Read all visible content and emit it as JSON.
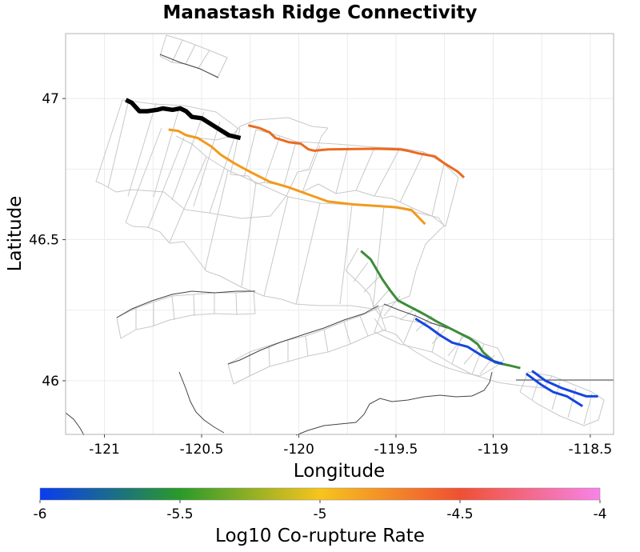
{
  "title": "Manastash Ridge Connectivity",
  "map": {
    "xlabel": "Longitude",
    "ylabel": "Latitude",
    "xlim": [
      -121.2,
      -118.38
    ],
    "ylim": [
      45.81,
      47.23
    ],
    "xticks": [
      {
        "value": -121,
        "label": "-121"
      },
      {
        "value": -120.5,
        "label": "-120.5"
      },
      {
        "value": -120,
        "label": "-120"
      },
      {
        "value": -119.5,
        "label": "-119.5"
      },
      {
        "value": -119,
        "label": "-119"
      },
      {
        "value": -118.5,
        "label": "-118.5"
      }
    ],
    "yticks": [
      {
        "value": 47,
        "label": "47"
      },
      {
        "value": 46.5,
        "label": "46.5"
      },
      {
        "value": 46,
        "label": "46"
      }
    ],
    "grid": true,
    "colors": {
      "panel_border": "#b3b3b3",
      "grid": "#ebebeb",
      "fault_outline": "#c8c8c8",
      "traces": "#444444",
      "source_fault": "#000000"
    }
  },
  "colorbar": {
    "title": "Log10 Co-rupture Rate",
    "ticks": [
      {
        "value": -6,
        "label": "-6"
      },
      {
        "value": -5.5,
        "label": "-5.5"
      },
      {
        "value": -5,
        "label": "-5"
      },
      {
        "value": -4.5,
        "label": "-4.5"
      },
      {
        "value": -4,
        "label": "-4"
      }
    ],
    "range": [
      -6,
      -4
    ],
    "stops": [
      "#0a3cf0",
      "#2a9a2a",
      "#f7c41d",
      "#f05032",
      "#f783e8"
    ]
  },
  "chart_data": {
    "type": "map",
    "title": "Manastash Ridge Connectivity",
    "xlabel": "Longitude",
    "ylabel": "Latitude",
    "source_fault": {
      "color": "#000000",
      "trace": [
        [
          -120.89,
          46.995
        ],
        [
          -120.86,
          46.985
        ],
        [
          -120.82,
          46.955
        ],
        [
          -120.78,
          46.955
        ],
        [
          -120.73,
          46.96
        ],
        [
          -120.7,
          46.965
        ],
        [
          -120.65,
          46.96
        ],
        [
          -120.61,
          46.965
        ],
        [
          -120.58,
          46.955
        ],
        [
          -120.55,
          46.935
        ],
        [
          -120.5,
          46.93
        ],
        [
          -120.43,
          46.9
        ],
        [
          -120.36,
          46.87
        ],
        [
          -120.3,
          46.86
        ]
      ]
    },
    "ruptured_faults": [
      {
        "color": "#f29a1c",
        "trace": [
          [
            -120.67,
            46.89
          ],
          [
            -120.62,
            46.885
          ],
          [
            -120.58,
            46.87
          ],
          [
            -120.52,
            46.86
          ],
          [
            -120.45,
            46.83
          ],
          [
            -120.4,
            46.8
          ],
          [
            -120.33,
            46.77
          ],
          [
            -120.25,
            46.74
          ],
          [
            -120.15,
            46.705
          ],
          [
            -120.05,
            46.685
          ],
          [
            -119.95,
            46.66
          ],
          [
            -119.85,
            46.635
          ],
          [
            -119.72,
            46.625
          ],
          [
            -119.5,
            46.615
          ],
          [
            -119.42,
            46.605
          ],
          [
            -119.35,
            46.555
          ]
        ]
      },
      {
        "color": "#ec6a1e",
        "trace": [
          [
            -120.26,
            46.905
          ],
          [
            -120.2,
            46.895
          ],
          [
            -120.15,
            46.88
          ],
          [
            -120.12,
            46.86
          ],
          [
            -120.05,
            46.845
          ],
          [
            -119.99,
            46.84
          ],
          [
            -119.95,
            46.82
          ],
          [
            -119.92,
            46.815
          ],
          [
            -119.85,
            46.82
          ],
          [
            -119.6,
            46.822
          ],
          [
            -119.48,
            46.82
          ],
          [
            -119.44,
            46.815
          ],
          [
            -119.38,
            46.805
          ],
          [
            -119.3,
            46.795
          ],
          [
            -119.25,
            46.77
          ],
          [
            -119.18,
            46.74
          ],
          [
            -119.15,
            46.72
          ]
        ]
      },
      {
        "color": "#3d8c3a",
        "trace": [
          [
            -119.68,
            46.46
          ],
          [
            -119.63,
            46.43
          ],
          [
            -119.57,
            46.36
          ],
          [
            -119.53,
            46.32
          ],
          [
            -119.49,
            46.285
          ],
          [
            -119.45,
            46.27
          ],
          [
            -119.38,
            46.245
          ],
          [
            -119.34,
            46.23
          ],
          [
            -119.29,
            46.21
          ],
          [
            -119.22,
            46.185
          ],
          [
            -119.12,
            46.15
          ],
          [
            -119.08,
            46.13
          ],
          [
            -119.05,
            46.1
          ],
          [
            -118.99,
            46.065
          ],
          [
            -118.92,
            46.055
          ],
          [
            -118.86,
            46.045
          ]
        ]
      },
      {
        "color": "#1646e0",
        "trace": [
          [
            -119.4,
            46.22
          ],
          [
            -119.33,
            46.19
          ],
          [
            -119.27,
            46.16
          ],
          [
            -119.21,
            46.135
          ],
          [
            -119.13,
            46.12
          ],
          [
            -119.06,
            46.09
          ],
          [
            -119.0,
            46.07
          ],
          [
            -118.95,
            46.06
          ]
        ]
      },
      {
        "color": "#1646e0",
        "trace": [
          [
            -118.8,
            46.035
          ],
          [
            -118.73,
            46.0
          ],
          [
            -118.65,
            45.975
          ],
          [
            -118.52,
            45.945
          ],
          [
            -118.46,
            45.945
          ]
        ]
      },
      {
        "color": "#1646e0",
        "trace": [
          [
            -118.83,
            46.025
          ],
          [
            -118.75,
            45.985
          ],
          [
            -118.69,
            45.96
          ],
          [
            -118.62,
            45.945
          ],
          [
            -118.54,
            45.91
          ]
        ]
      }
    ]
  }
}
